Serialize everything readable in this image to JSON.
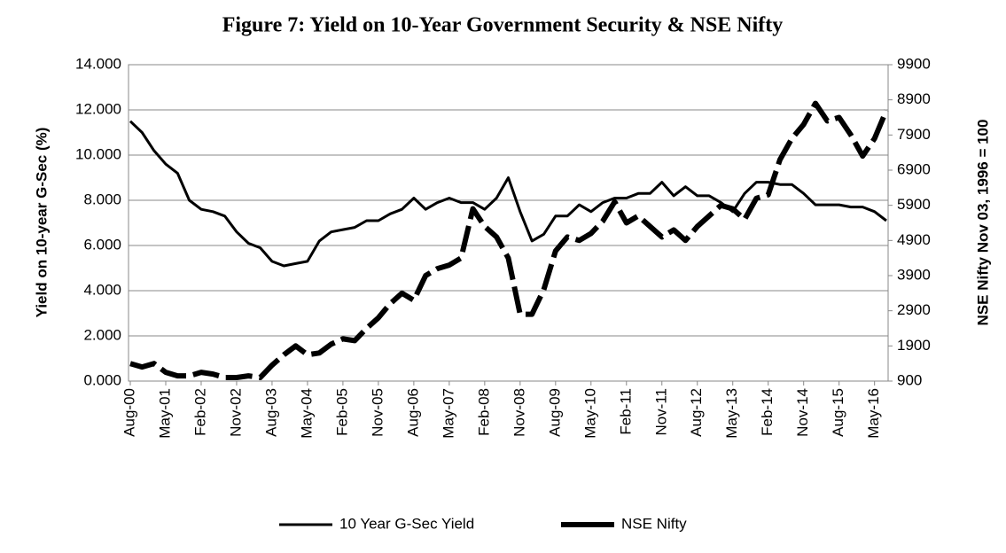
{
  "chart_data": {
    "type": "line",
    "title": "Figure 7: Yield on 10-Year Government Security & NSE Nifty",
    "y_label": "Yield on 10-year G-Sec (%)",
    "y2_label": "NSE Nifty Nov 03, 1996 = 100",
    "categories": [
      "Aug-00",
      null,
      null,
      "May-01",
      null,
      null,
      "Feb-02",
      null,
      null,
      "Nov-02",
      null,
      null,
      "Aug-03",
      null,
      null,
      "May-04",
      null,
      null,
      "Feb-05",
      null,
      null,
      "Nov-05",
      null,
      null,
      "Aug-06",
      null,
      null,
      "May-07",
      null,
      null,
      "Feb-08",
      null,
      null,
      "Nov-08",
      null,
      null,
      "Aug-09",
      null,
      null,
      "May-10",
      null,
      null,
      "Feb-11",
      null,
      null,
      "Nov-11",
      null,
      null,
      "Aug-12",
      null,
      null,
      "May-13",
      null,
      null,
      "Feb-14",
      null,
      null,
      "Nov-14",
      null,
      null,
      "Aug-15",
      null,
      null,
      "May-16",
      null
    ],
    "series": [
      {
        "name": "10 Year G-Sec Yield",
        "color": "#000000",
        "axis": "y",
        "dashed": false,
        "values": [
          11.5,
          11.0,
          10.2,
          9.6,
          9.2,
          8.0,
          7.6,
          7.5,
          7.3,
          6.6,
          6.1,
          5.9,
          5.3,
          5.1,
          5.2,
          5.3,
          6.2,
          6.6,
          6.7,
          6.8,
          7.1,
          7.1,
          7.4,
          7.6,
          8.1,
          7.6,
          7.9,
          8.1,
          7.9,
          7.9,
          7.6,
          8.1,
          9.0,
          7.5,
          6.2,
          6.5,
          7.3,
          7.3,
          7.8,
          7.5,
          7.9,
          8.1,
          8.1,
          8.3,
          8.3,
          8.8,
          8.2,
          8.6,
          8.2,
          8.2,
          7.9,
          7.5,
          8.3,
          8.8,
          8.8,
          8.7,
          8.7,
          8.3,
          7.8,
          7.8,
          7.8,
          7.7,
          7.7,
          7.5,
          7.1
        ]
      },
      {
        "name": "NSE Nifty",
        "color": "#000000",
        "axis": "y2",
        "dashed": true,
        "values": [
          1400,
          1300,
          1400,
          1150,
          1050,
          1050,
          1150,
          1100,
          1000,
          1000,
          1050,
          1000,
          1350,
          1650,
          1900,
          1650,
          1700,
          1950,
          2100,
          2050,
          2400,
          2700,
          3100,
          3400,
          3200,
          3900,
          4100,
          4200,
          4400,
          5800,
          5300,
          5000,
          4400,
          2800,
          2800,
          3500,
          4600,
          5000,
          4900,
          5100,
          5450,
          6000,
          5400,
          5600,
          5300,
          5000,
          5200,
          4900,
          5300,
          5600,
          5900,
          5800,
          5500,
          6100,
          6200,
          7200,
          7800,
          8200,
          8800,
          8300,
          8400,
          7900,
          7300,
          7800,
          8600
        ]
      }
    ],
    "ylim": [
      0,
      14
    ],
    "yticks": [
      {
        "value": 0,
        "label": "0.000"
      },
      {
        "value": 2,
        "label": "2.000"
      },
      {
        "value": 4,
        "label": "4.000"
      },
      {
        "value": 6,
        "label": "6.000"
      },
      {
        "value": 8,
        "label": "8.000"
      },
      {
        "value": 10,
        "label": "10.000"
      },
      {
        "value": 12,
        "label": "12.000"
      },
      {
        "value": 14,
        "label": "14.000"
      }
    ],
    "y2lim": [
      900,
      9900
    ],
    "y2ticks": [
      900,
      1900,
      2900,
      3900,
      4900,
      5900,
      6900,
      7900,
      8900,
      9900
    ],
    "grid": true
  }
}
